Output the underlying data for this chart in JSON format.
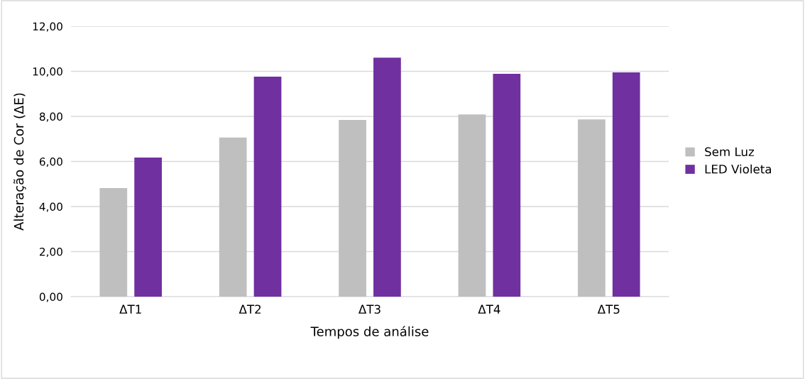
{
  "chart_data": {
    "type": "bar",
    "xlabel": "Tempos de análise",
    "ylabel": "Alteração de Cor (ΔE)",
    "categories": [
      "ΔT1",
      "ΔT2",
      "ΔT3",
      "ΔT4",
      "ΔT5"
    ],
    "series": [
      {
        "name": "Sem Luz",
        "color": "#bfbfbf",
        "values": [
          4.82,
          7.06,
          7.84,
          8.09,
          7.87
        ]
      },
      {
        "name": "LED Violeta",
        "color": "#7030a0",
        "values": [
          6.17,
          9.76,
          10.61,
          9.89,
          9.95
        ]
      }
    ],
    "ylim": [
      0,
      12
    ],
    "yticks": [
      {
        "value": 0,
        "label": "0,00"
      },
      {
        "value": 2,
        "label": "2,00"
      },
      {
        "value": 4,
        "label": "4,00"
      },
      {
        "value": 6,
        "label": "6,00"
      },
      {
        "value": 8,
        "label": "8,00"
      },
      {
        "value": 10,
        "label": "10,00"
      },
      {
        "value": 12,
        "label": "12,00"
      }
    ],
    "grid": "y",
    "legend": "right"
  }
}
